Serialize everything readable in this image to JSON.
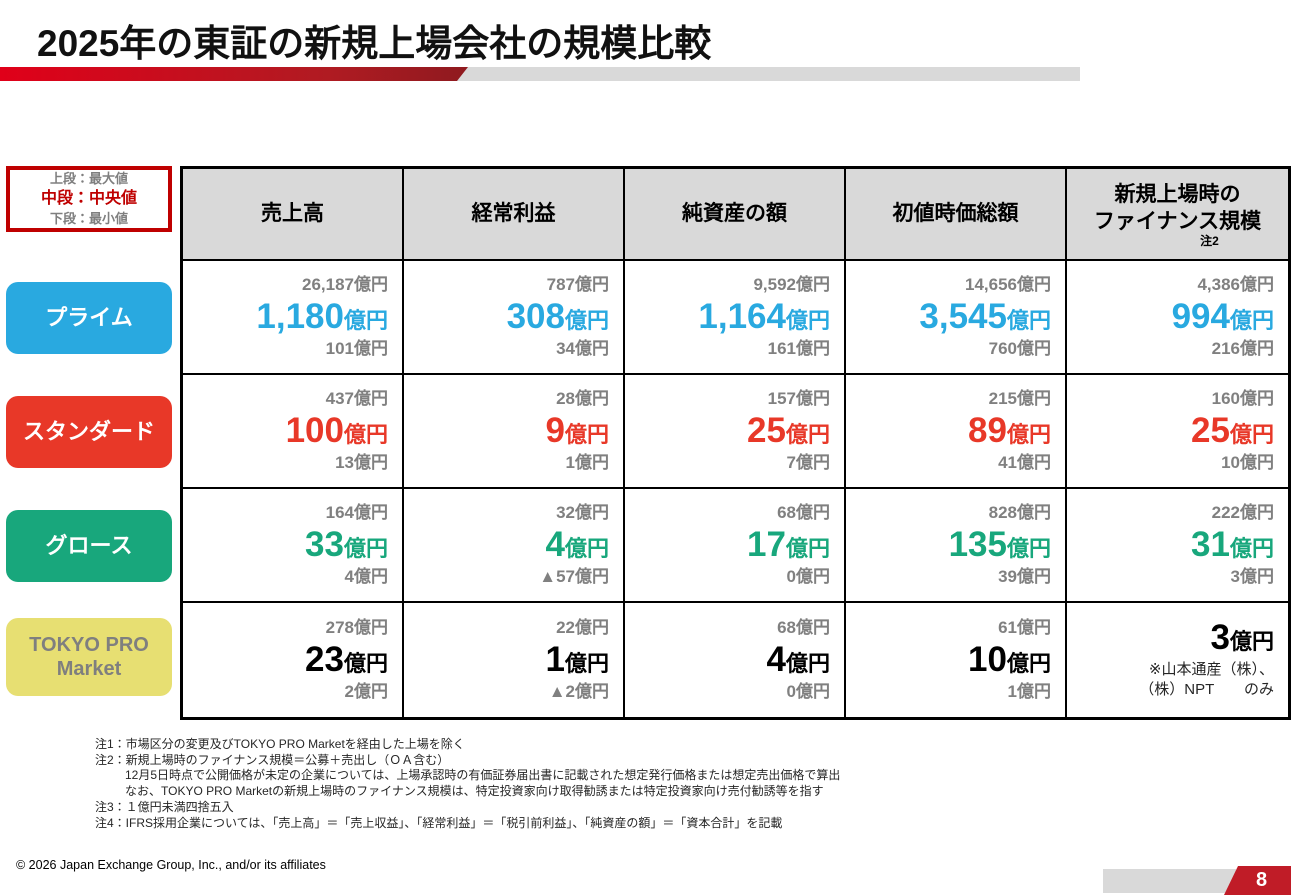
{
  "slide": {
    "title": "2025年の東証の新規上場会社の規模比較",
    "page_number": "8",
    "copyright": "© 2026 Japan Exchange Group, Inc., and/or its affiliates",
    "accent_color": "#c00000"
  },
  "legend": {
    "line1": "上段：最大値",
    "line2": "中段：中央値",
    "line3": "下段：最小値"
  },
  "table": {
    "unit": "億円",
    "columns": [
      "売上高",
      "経常利益",
      "純資産の額",
      "初値時価総額",
      "新規上場時の\nファイナンス規模"
    ],
    "finance_note_ref": "注2",
    "rows": [
      {
        "label": "プライム",
        "color": "#29a9e0",
        "cells": [
          {
            "max": "26,187億円",
            "median": "1,180",
            "min": "101億円"
          },
          {
            "max": "787億円",
            "median": "308",
            "min": "34億円"
          },
          {
            "max": "9,592億円",
            "median": "1,164",
            "min": "161億円"
          },
          {
            "max": "14,656億円",
            "median": "3,545",
            "min": "760億円"
          },
          {
            "max": "4,386億円",
            "median": "994",
            "min": "216億円"
          }
        ]
      },
      {
        "label": "スタンダード",
        "color": "#e83828",
        "cells": [
          {
            "max": "437億円",
            "median": "100",
            "min": "13億円"
          },
          {
            "max": "28億円",
            "median": "9",
            "min": "1億円"
          },
          {
            "max": "157億円",
            "median": "25",
            "min": "7億円"
          },
          {
            "max": "215億円",
            "median": "89",
            "min": "41億円"
          },
          {
            "max": "160億円",
            "median": "25",
            "min": "10億円"
          }
        ]
      },
      {
        "label": "グロース",
        "color": "#18a77c",
        "cells": [
          {
            "max": "164億円",
            "median": "33",
            "min": "4億円"
          },
          {
            "max": "32億円",
            "median": "4",
            "min": "▲57億円"
          },
          {
            "max": "68億円",
            "median": "17",
            "min": "0億円"
          },
          {
            "max": "828億円",
            "median": "135",
            "min": "39億円"
          },
          {
            "max": "222億円",
            "median": "31",
            "min": "3億円"
          }
        ]
      },
      {
        "label": "TOKYO PRO\nMarket",
        "color": "#000000",
        "label_bg": "#e7df72",
        "cells": [
          {
            "max": "278億円",
            "median": "23",
            "min": "2億円"
          },
          {
            "max": "22億円",
            "median": "1",
            "min": "▲2億円"
          },
          {
            "max": "68億円",
            "median": "4",
            "min": "0億円"
          },
          {
            "max": "61億円",
            "median": "10",
            "min": "1億円"
          },
          {
            "max": "",
            "median": "3",
            "min": "",
            "note": "※山本通産（株）、\n（株）NPT　　のみ"
          }
        ]
      }
    ]
  },
  "footnotes": [
    "注1：市場区分の変更及びTOKYO PRO Marketを経由した上場を除く",
    "注2：新規上場時のファイナンス規模＝公募＋売出し（ＯＡ含む）",
    "12月5日時点で公開価格が未定の企業については、上場承認時の有価証券届出書に記載された想定発行価格または想定売出価格で算出",
    "なお、TOKYO PRO Marketの新規上場時のファイナンス規模は、特定投資家向け取得勧誘または特定投資家向け売付勧誘等を指す",
    "注3：１億円未満四捨五入",
    "注4：IFRS採用企業については、「売上高」＝「売上収益」、「経常利益」＝「税引前利益」、「純資産の額」＝「資本合計」を記載"
  ]
}
